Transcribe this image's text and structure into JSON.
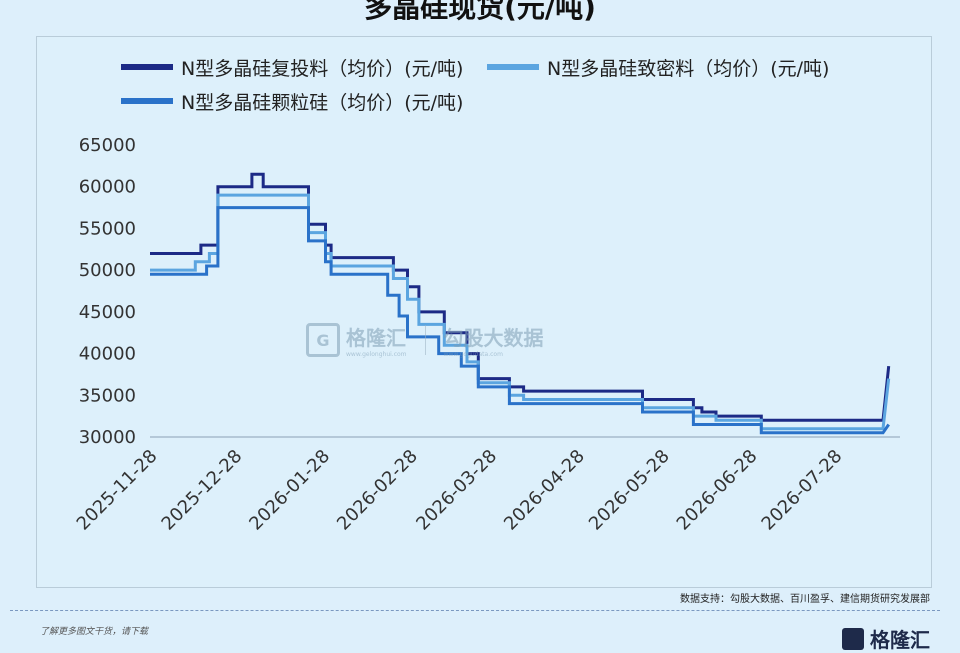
{
  "title": "多晶硅现货(元/吨)",
  "chart_data": {
    "type": "line",
    "ylim": [
      30000,
      65000
    ],
    "yticks": [
      30000,
      35000,
      40000,
      45000,
      50000,
      55000,
      60000,
      65000
    ],
    "x_range": [
      "2025-11-28",
      "2026-08-20"
    ],
    "x_tick_labels": [
      "2025-11-28",
      "2025-12-28",
      "2026-01-28",
      "2026-02-28",
      "2026-03-28",
      "2026-04-28",
      "2026-05-28",
      "2026-06-28",
      "2026-07-28"
    ],
    "grid": false,
    "legend_position": "top",
    "series": [
      {
        "name": "N型多晶硅复投料（均价）(元/吨)",
        "color": "#1c2a86",
        "points": [
          [
            "2025-11-28",
            52000
          ],
          [
            "2025-12-16",
            52000
          ],
          [
            "2025-12-16",
            53000
          ],
          [
            "2025-12-22",
            53000
          ],
          [
            "2025-12-22",
            60000
          ],
          [
            "2026-01-03",
            60000
          ],
          [
            "2026-01-03",
            61500
          ],
          [
            "2026-01-07",
            61500
          ],
          [
            "2026-01-07",
            60000
          ],
          [
            "2026-01-23",
            60000
          ],
          [
            "2026-01-23",
            55500
          ],
          [
            "2026-01-29",
            55500
          ],
          [
            "2026-01-29",
            53000
          ],
          [
            "2026-01-31",
            53000
          ],
          [
            "2026-01-31",
            51500
          ],
          [
            "2026-02-22",
            51500
          ],
          [
            "2026-02-22",
            50000
          ],
          [
            "2026-02-27",
            50000
          ],
          [
            "2026-02-27",
            48000
          ],
          [
            "2026-03-03",
            48000
          ],
          [
            "2026-03-03",
            45000
          ],
          [
            "2026-03-12",
            45000
          ],
          [
            "2026-03-12",
            42500
          ],
          [
            "2026-03-20",
            42500
          ],
          [
            "2026-03-20",
            40000
          ],
          [
            "2026-03-24",
            40000
          ],
          [
            "2026-03-24",
            37000
          ],
          [
            "2026-04-04",
            37000
          ],
          [
            "2026-04-04",
            36000
          ],
          [
            "2026-04-09",
            36000
          ],
          [
            "2026-04-09",
            35500
          ],
          [
            "2026-05-21",
            35500
          ],
          [
            "2026-05-21",
            34500
          ],
          [
            "2026-06-08",
            34500
          ],
          [
            "2026-06-08",
            33500
          ],
          [
            "2026-06-11",
            33500
          ],
          [
            "2026-06-11",
            33000
          ],
          [
            "2026-06-16",
            33000
          ],
          [
            "2026-06-16",
            32500
          ],
          [
            "2026-07-02",
            32500
          ],
          [
            "2026-07-02",
            32000
          ],
          [
            "2026-08-14",
            32000
          ],
          [
            "2026-08-16",
            38500
          ]
        ]
      },
      {
        "name": "N型多晶硅致密料（均价）(元/吨)",
        "color": "#5ba5e0",
        "points": [
          [
            "2025-11-28",
            50000
          ],
          [
            "2025-12-14",
            50000
          ],
          [
            "2025-12-14",
            51000
          ],
          [
            "2025-12-19",
            51000
          ],
          [
            "2025-12-19",
            52000
          ],
          [
            "2025-12-22",
            52000
          ],
          [
            "2025-12-22",
            59000
          ],
          [
            "2026-01-23",
            59000
          ],
          [
            "2026-01-23",
            54500
          ],
          [
            "2026-01-29",
            54500
          ],
          [
            "2026-01-29",
            52000
          ],
          [
            "2026-01-31",
            52000
          ],
          [
            "2026-01-31",
            50500
          ],
          [
            "2026-02-22",
            50500
          ],
          [
            "2026-02-22",
            49000
          ],
          [
            "2026-02-27",
            49000
          ],
          [
            "2026-02-27",
            46500
          ],
          [
            "2026-03-03",
            46500
          ],
          [
            "2026-03-03",
            43500
          ],
          [
            "2026-03-12",
            43500
          ],
          [
            "2026-03-12",
            41000
          ],
          [
            "2026-03-20",
            41000
          ],
          [
            "2026-03-20",
            39000
          ],
          [
            "2026-03-24",
            39000
          ],
          [
            "2026-03-24",
            36500
          ],
          [
            "2026-04-04",
            36500
          ],
          [
            "2026-04-04",
            35000
          ],
          [
            "2026-04-09",
            35000
          ],
          [
            "2026-04-09",
            34500
          ],
          [
            "2026-05-21",
            34500
          ],
          [
            "2026-05-21",
            33500
          ],
          [
            "2026-06-08",
            33500
          ],
          [
            "2026-06-08",
            32500
          ],
          [
            "2026-06-16",
            32500
          ],
          [
            "2026-06-16",
            32000
          ],
          [
            "2026-07-02",
            32000
          ],
          [
            "2026-07-02",
            31000
          ],
          [
            "2026-08-14",
            31000
          ],
          [
            "2026-08-16",
            37000
          ]
        ]
      },
      {
        "name": "N型多晶硅颗粒硅（均价）(元/吨)",
        "color": "#2a72c9",
        "points": [
          [
            "2025-11-28",
            49500
          ],
          [
            "2025-12-18",
            49500
          ],
          [
            "2025-12-18",
            50500
          ],
          [
            "2025-12-22",
            50500
          ],
          [
            "2025-12-22",
            57500
          ],
          [
            "2026-01-23",
            57500
          ],
          [
            "2026-01-23",
            53500
          ],
          [
            "2026-01-29",
            53500
          ],
          [
            "2026-01-29",
            51000
          ],
          [
            "2026-01-31",
            51000
          ],
          [
            "2026-01-31",
            49500
          ],
          [
            "2026-02-20",
            49500
          ],
          [
            "2026-02-20",
            47000
          ],
          [
            "2026-02-24",
            47000
          ],
          [
            "2026-02-24",
            44500
          ],
          [
            "2026-02-27",
            44500
          ],
          [
            "2026-02-27",
            42000
          ],
          [
            "2026-03-10",
            42000
          ],
          [
            "2026-03-10",
            40000
          ],
          [
            "2026-03-18",
            40000
          ],
          [
            "2026-03-18",
            38500
          ],
          [
            "2026-03-24",
            38500
          ],
          [
            "2026-03-24",
            36000
          ],
          [
            "2026-04-04",
            36000
          ],
          [
            "2026-04-04",
            34000
          ],
          [
            "2026-05-21",
            34000
          ],
          [
            "2026-05-21",
            33000
          ],
          [
            "2026-06-08",
            33000
          ],
          [
            "2026-06-08",
            31500
          ],
          [
            "2026-07-02",
            31500
          ],
          [
            "2026-07-02",
            30500
          ],
          [
            "2026-08-14",
            30500
          ],
          [
            "2026-08-16",
            31500
          ]
        ]
      }
    ]
  },
  "source": "数据支持：勾股大数据、百川盈孚、建信期货研究发展部",
  "watermark": {
    "brand_left": "格隆汇",
    "brand_left_url": "www.gelonghui.com",
    "brand_right": "勾股大数据",
    "brand_right_url": "www.gogudata.com"
  },
  "footer": {
    "note": "了解更多图文干货，请下载",
    "logo": "格隆汇"
  }
}
